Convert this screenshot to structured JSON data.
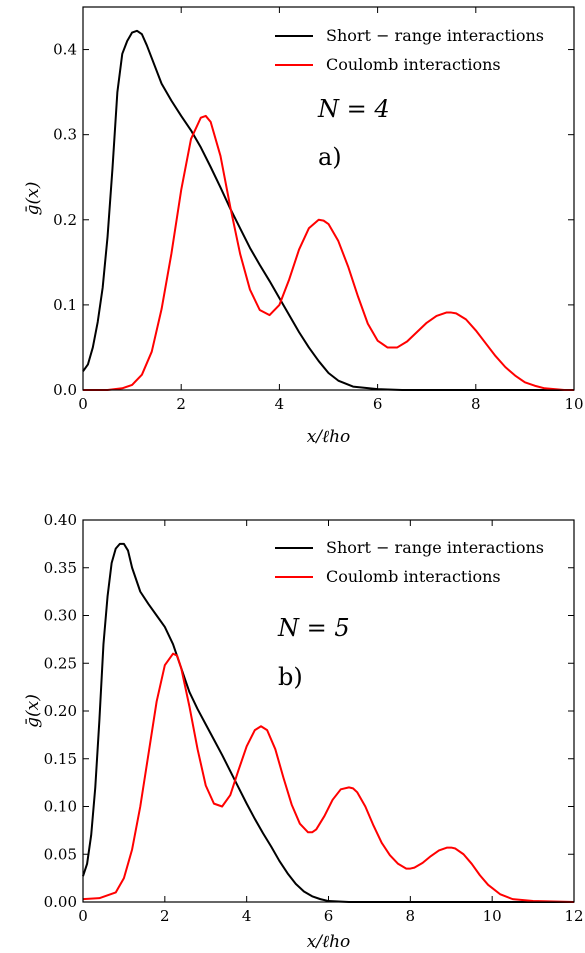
{
  "chart_data": [
    {
      "type": "line",
      "panel_label": "a)",
      "annotation": "N = 4",
      "xlabel": "x/ℓho",
      "ylabel": "ḡ(x)",
      "xlim": [
        0,
        10
      ],
      "ylim": [
        0,
        0.45
      ],
      "xticks": [
        0,
        2,
        4,
        6,
        8,
        10
      ],
      "xtick_labels": [
        "0",
        "2",
        "4",
        "6",
        "8",
        "10"
      ],
      "yticks": [
        0.0,
        0.1,
        0.2,
        0.3,
        0.4
      ],
      "ytick_labels": [
        "0.0",
        "0.1",
        "0.2",
        "0.3",
        "0.4"
      ],
      "grid": false,
      "legend_position": "top-right",
      "series": [
        {
          "name": "Short − range interactions",
          "color": "#000000",
          "x": [
            0,
            0.1,
            0.2,
            0.3,
            0.4,
            0.5,
            0.6,
            0.7,
            0.8,
            0.9,
            1.0,
            1.1,
            1.2,
            1.3,
            1.4,
            1.6,
            1.8,
            2.0,
            2.2,
            2.4,
            2.6,
            2.8,
            3.0,
            3.2,
            3.4,
            3.6,
            3.8,
            4.0,
            4.2,
            4.4,
            4.6,
            4.8,
            5.0,
            5.2,
            5.5,
            6.0,
            6.5,
            7.0,
            8.0,
            10.0
          ],
          "y": [
            0.022,
            0.03,
            0.05,
            0.08,
            0.12,
            0.18,
            0.26,
            0.35,
            0.395,
            0.41,
            0.42,
            0.422,
            0.418,
            0.405,
            0.39,
            0.36,
            0.34,
            0.322,
            0.305,
            0.285,
            0.262,
            0.238,
            0.213,
            0.19,
            0.167,
            0.147,
            0.128,
            0.108,
            0.088,
            0.068,
            0.05,
            0.034,
            0.02,
            0.011,
            0.004,
            0.001,
            0.0,
            0.0,
            0.0,
            0.0
          ]
        },
        {
          "name": "Coulomb interactions",
          "color": "#ff0000",
          "x": [
            0,
            0.5,
            0.8,
            1.0,
            1.2,
            1.4,
            1.6,
            1.8,
            2.0,
            2.2,
            2.4,
            2.5,
            2.6,
            2.8,
            3.0,
            3.2,
            3.4,
            3.6,
            3.8,
            4.0,
            4.2,
            4.4,
            4.6,
            4.8,
            4.9,
            5.0,
            5.2,
            5.4,
            5.6,
            5.8,
            6.0,
            6.2,
            6.4,
            6.6,
            6.8,
            7.0,
            7.2,
            7.4,
            7.5,
            7.6,
            7.8,
            8.0,
            8.2,
            8.4,
            8.6,
            8.8,
            9.0,
            9.2,
            9.4,
            9.6,
            9.8,
            10.0
          ],
          "y": [
            0.0,
            0.0,
            0.002,
            0.006,
            0.018,
            0.045,
            0.095,
            0.16,
            0.235,
            0.295,
            0.32,
            0.322,
            0.315,
            0.275,
            0.215,
            0.16,
            0.118,
            0.094,
            0.088,
            0.1,
            0.13,
            0.165,
            0.19,
            0.2,
            0.199,
            0.195,
            0.175,
            0.145,
            0.11,
            0.078,
            0.058,
            0.05,
            0.05,
            0.057,
            0.068,
            0.079,
            0.087,
            0.091,
            0.091,
            0.09,
            0.083,
            0.07,
            0.055,
            0.04,
            0.027,
            0.017,
            0.009,
            0.005,
            0.002,
            0.001,
            0.0,
            0.0
          ]
        }
      ]
    },
    {
      "type": "line",
      "panel_label": "b)",
      "annotation": "N = 5",
      "xlabel": "x/ℓho",
      "ylabel": "ḡ(x)",
      "xlim": [
        0,
        12
      ],
      "ylim": [
        0,
        0.4
      ],
      "xticks": [
        0,
        2,
        4,
        6,
        8,
        10,
        12
      ],
      "xtick_labels": [
        "0",
        "2",
        "4",
        "6",
        "8",
        "10",
        "12"
      ],
      "yticks": [
        0.0,
        0.05,
        0.1,
        0.15,
        0.2,
        0.25,
        0.3,
        0.35,
        0.4
      ],
      "ytick_labels": [
        "0.00",
        "0.05",
        "0.10",
        "0.15",
        "0.20",
        "0.25",
        "0.30",
        "0.35",
        "0.40"
      ],
      "grid": false,
      "legend_position": "top-right",
      "series": [
        {
          "name": "Short − range interactions",
          "color": "#000000",
          "x": [
            0,
            0.1,
            0.2,
            0.3,
            0.4,
            0.5,
            0.6,
            0.7,
            0.8,
            0.9,
            1.0,
            1.1,
            1.2,
            1.4,
            1.6,
            1.8,
            2.0,
            2.2,
            2.4,
            2.6,
            2.8,
            3.0,
            3.2,
            3.4,
            3.6,
            3.8,
            4.0,
            4.2,
            4.4,
            4.6,
            4.8,
            5.0,
            5.2,
            5.4,
            5.6,
            5.8,
            6.0,
            6.5,
            7.0,
            8.0,
            12.0
          ],
          "y": [
            0.027,
            0.04,
            0.07,
            0.12,
            0.19,
            0.27,
            0.32,
            0.355,
            0.37,
            0.375,
            0.375,
            0.368,
            0.35,
            0.325,
            0.312,
            0.3,
            0.288,
            0.27,
            0.245,
            0.22,
            0.202,
            0.186,
            0.17,
            0.154,
            0.137,
            0.12,
            0.103,
            0.087,
            0.072,
            0.058,
            0.043,
            0.03,
            0.019,
            0.011,
            0.006,
            0.003,
            0.001,
            0.0,
            0.0,
            0.0,
            0.0
          ]
        },
        {
          "name": "Coulomb interactions",
          "color": "#ff0000",
          "x": [
            0,
            0.4,
            0.8,
            1.0,
            1.2,
            1.4,
            1.6,
            1.8,
            2.0,
            2.2,
            2.3,
            2.4,
            2.6,
            2.8,
            3.0,
            3.2,
            3.4,
            3.6,
            3.8,
            4.0,
            4.2,
            4.35,
            4.5,
            4.7,
            4.9,
            5.1,
            5.3,
            5.5,
            5.6,
            5.7,
            5.9,
            6.1,
            6.3,
            6.5,
            6.6,
            6.7,
            6.9,
            7.1,
            7.3,
            7.5,
            7.7,
            7.9,
            8.0,
            8.1,
            8.3,
            8.5,
            8.7,
            8.9,
            9.0,
            9.1,
            9.3,
            9.5,
            9.7,
            9.9,
            10.2,
            10.5,
            11.0,
            12.0
          ],
          "y": [
            0.003,
            0.004,
            0.01,
            0.025,
            0.055,
            0.1,
            0.155,
            0.21,
            0.248,
            0.26,
            0.258,
            0.245,
            0.205,
            0.16,
            0.122,
            0.103,
            0.1,
            0.112,
            0.138,
            0.163,
            0.18,
            0.184,
            0.18,
            0.16,
            0.13,
            0.102,
            0.082,
            0.073,
            0.073,
            0.076,
            0.09,
            0.107,
            0.118,
            0.12,
            0.119,
            0.115,
            0.1,
            0.08,
            0.062,
            0.049,
            0.04,
            0.035,
            0.035,
            0.036,
            0.041,
            0.048,
            0.054,
            0.057,
            0.057,
            0.056,
            0.05,
            0.04,
            0.028,
            0.018,
            0.008,
            0.003,
            0.001,
            0.0
          ]
        }
      ]
    }
  ]
}
